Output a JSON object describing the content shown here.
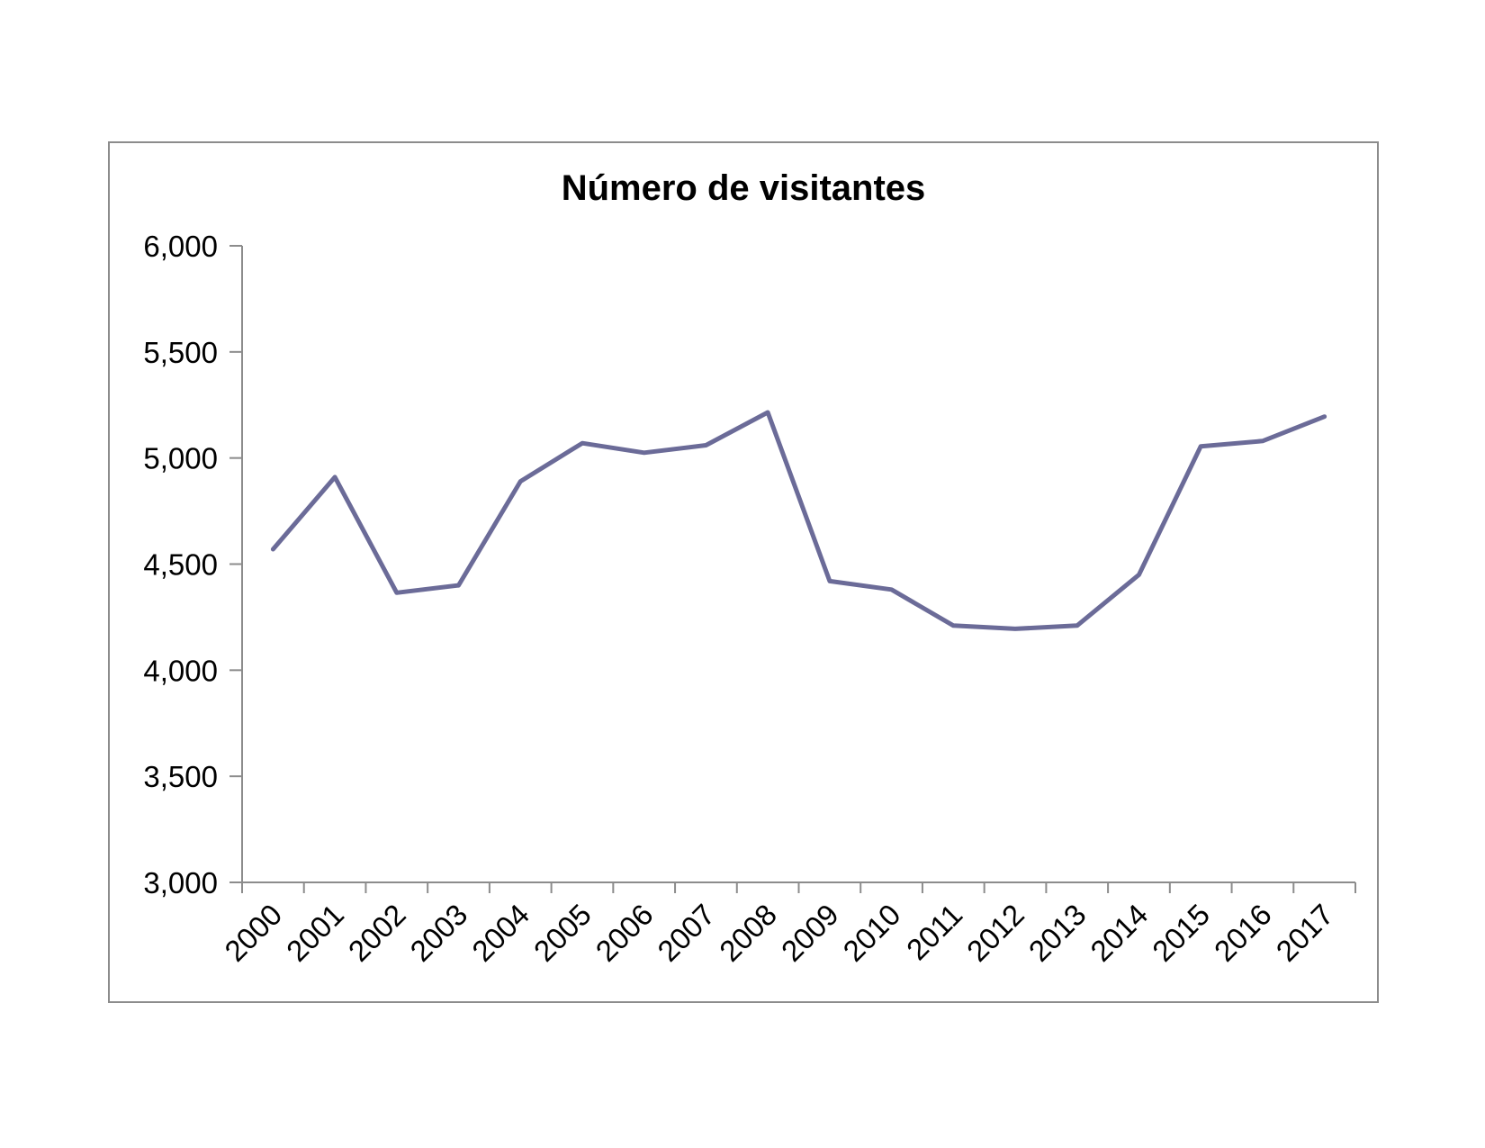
{
  "chart_data": {
    "type": "line",
    "title": "Número de visitantes",
    "xlabel": "",
    "ylabel": "",
    "categories": [
      "2000",
      "2001",
      "2002",
      "2003",
      "2004",
      "2005",
      "2006",
      "2007",
      "2008",
      "2009",
      "2010",
      "2011",
      "2012",
      "2013",
      "2014",
      "2015",
      "2016",
      "2017"
    ],
    "y_ticks": [
      3000,
      3500,
      4000,
      4500,
      5000,
      5500,
      6000
    ],
    "y_tick_labels": [
      "3,000",
      "3,500",
      "4,000",
      "4,500",
      "5,000",
      "5,500",
      "6,000"
    ],
    "ylim": [
      3000,
      6000
    ],
    "grid": false,
    "legend": "none",
    "series": [
      {
        "color": "#6b6b98",
        "values": [
          4570,
          4910,
          4365,
          4400,
          4890,
          5070,
          5025,
          5060,
          5215,
          4420,
          4380,
          4210,
          4195,
          4210,
          4450,
          5055,
          5080,
          5195
        ]
      }
    ]
  }
}
